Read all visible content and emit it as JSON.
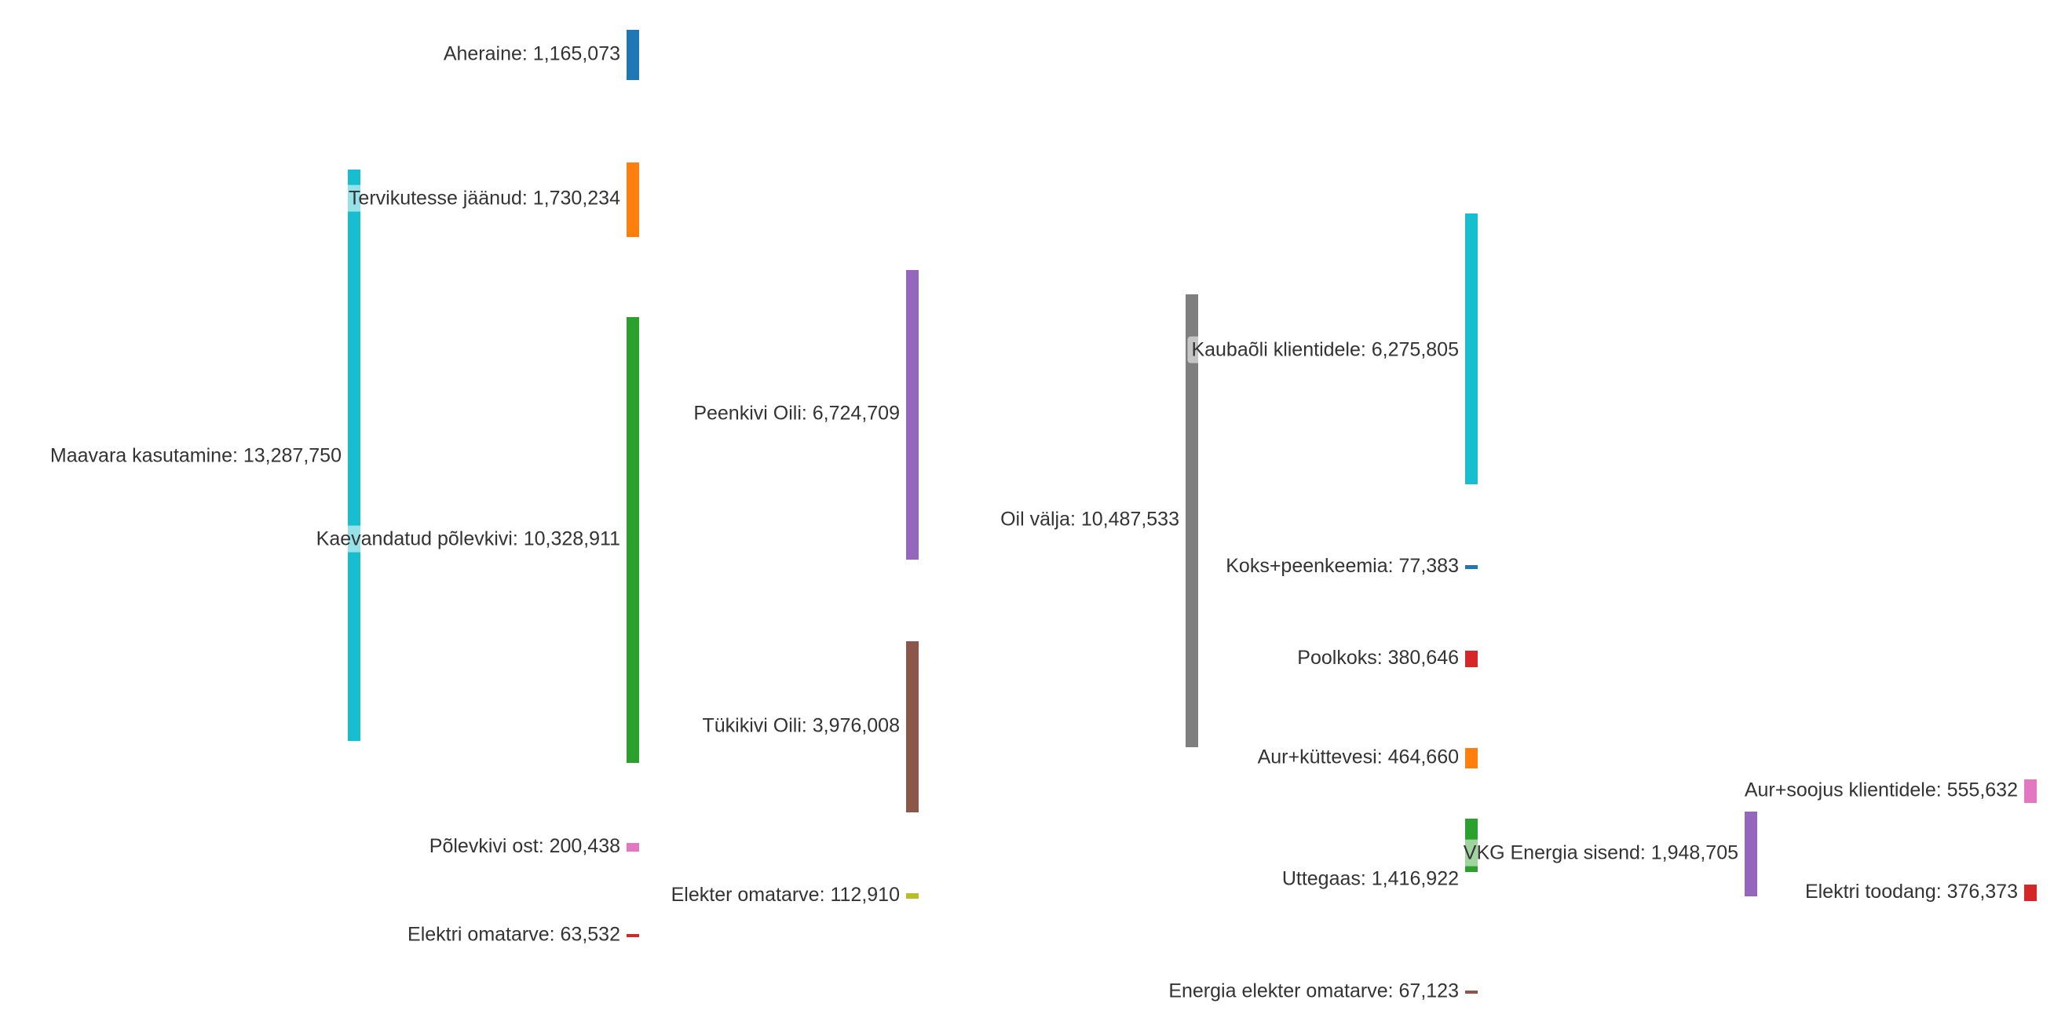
{
  "chart_data": {
    "type": "sankey",
    "nodes": [
      {
        "id": "maavara",
        "label": "Maavara kasutamine: 13,287,750",
        "name": "Maavara kasutamine",
        "value": 13287750,
        "color": "#17becf"
      },
      {
        "id": "aheraine",
        "label": "Aheraine: 1,165,073",
        "name": "Aheraine",
        "value": 1165073,
        "color": "#1f77b4"
      },
      {
        "id": "tervikutesse",
        "label": "Tervikutesse jäänud: 1,730,234",
        "name": "Tervikutesse jäänud",
        "value": 1730234,
        "color": "#ff7f0e"
      },
      {
        "id": "kaevandatud",
        "label": "Kaevandatud põlevkivi: 10,328,911",
        "name": "Kaevandatud põlevkivi",
        "value": 10328911,
        "color": "#2ca02c"
      },
      {
        "id": "polevkivi_ost",
        "label": "Põlevkivi ost: 200,438",
        "name": "Põlevkivi ost",
        "value": 200438,
        "color": "#e377c2"
      },
      {
        "id": "elektri_omatarve",
        "label": "Elektri omatarve: 63,532",
        "name": "Elektri omatarve",
        "value": 63532,
        "color": "#d62728"
      },
      {
        "id": "peenkivi",
        "label": "Peenkivi Oili: 6,724,709",
        "name": "Peenkivi Oili",
        "value": 6724709,
        "color": "#9467bd"
      },
      {
        "id": "tukikivi",
        "label": "Tükikivi Oili: 3,976,008",
        "name": "Tükikivi Oili",
        "value": 3976008,
        "color": "#8c564b"
      },
      {
        "id": "elekter_omatarve",
        "label": "Elekter omatarve: 112,910",
        "name": "Elekter omatarve",
        "value": 112910,
        "color": "#bcbd22"
      },
      {
        "id": "oil_valja",
        "label": "Oil välja: 10,487,533",
        "name": "Oil välja",
        "value": 10487533,
        "color": "#7f7f7f"
      },
      {
        "id": "kaubaoli",
        "label": "Kaubaõli klientidele: 6,275,805",
        "name": "Kaubaõli klientidele",
        "value": 6275805,
        "color": "#17becf"
      },
      {
        "id": "koks",
        "label": "Koks+peenkeemia: 77,383",
        "name": "Koks+peenkeemia",
        "value": 77383,
        "color": "#1f77b4"
      },
      {
        "id": "poolkoks",
        "label": "Poolkoks: 380,646",
        "name": "Poolkoks",
        "value": 380646,
        "color": "#d62728"
      },
      {
        "id": "aur_kuttevesi",
        "label": "Aur+küttevesi: 464,660",
        "name": "Aur+küttevesi",
        "value": 464660,
        "color": "#ff7f0e"
      },
      {
        "id": "uttegaas",
        "label": "Uttegaas: 1,416,922",
        "name": "Uttegaas",
        "value": 1416922,
        "color": "#2ca02c"
      },
      {
        "id": "energia_elekter_omatarve",
        "label": "Energia elekter omatarve: 67,123",
        "name": "Energia elekter omatarve",
        "value": 67123,
        "color": "#8c564b"
      },
      {
        "id": "vkg_energia",
        "label": "VKG Energia sisend: 1,948,705",
        "name": "VKG Energia sisend",
        "value": 1948705,
        "color": "#9467bd"
      },
      {
        "id": "aur_soojus",
        "label": "Aur+soojus klientidele: 555,632",
        "name": "Aur+soojus klientidele",
        "value": 555632,
        "color": "#e377c2"
      },
      {
        "id": "elektri_toodang",
        "label": "Elektri toodang: 376,373",
        "name": "Elektri toodang",
        "value": 376373,
        "color": "#d62728"
      }
    ],
    "links": [
      {
        "source": "maavara",
        "target": "aheraine",
        "value": 1165073
      },
      {
        "source": "maavara",
        "target": "tervikutesse",
        "value": 1730234
      },
      {
        "source": "maavara",
        "target": "kaevandatud",
        "value": 10328911
      },
      {
        "source": "maavara",
        "target": "elektri_omatarve",
        "value": 63532
      },
      {
        "source": "kaevandatud",
        "target": "peenkivi",
        "value": 6724709
      },
      {
        "source": "kaevandatud",
        "target": "tukikivi",
        "value": 3976008
      },
      {
        "source": "polevkivi_ost",
        "target": "peenkivi",
        "value": 200438
      },
      {
        "source": "peenkivi",
        "target": "oil_valja",
        "value": 6724709
      },
      {
        "source": "tukikivi",
        "target": "oil_valja",
        "value": 3976008
      },
      {
        "source": "elekter_omatarve",
        "target": "oil_valja",
        "value": 112910
      },
      {
        "source": "oil_valja",
        "target": "kaubaoli",
        "value": 6275805
      },
      {
        "source": "oil_valja",
        "target": "koks",
        "value": 77383
      },
      {
        "source": "oil_valja",
        "target": "poolkoks",
        "value": 380646
      },
      {
        "source": "oil_valja",
        "target": "aur_kuttevesi",
        "value": 464660
      },
      {
        "source": "oil_valja",
        "target": "uttegaas",
        "value": 1416922
      },
      {
        "source": "aur_kuttevesi",
        "target": "vkg_energia",
        "value": 464660
      },
      {
        "source": "uttegaas",
        "target": "vkg_energia",
        "value": 1416922
      },
      {
        "source": "energia_elekter_omatarve",
        "target": "vkg_energia",
        "value": 67123
      },
      {
        "source": "vkg_energia",
        "target": "aur_soojus",
        "value": 555632
      },
      {
        "source": "vkg_energia",
        "target": "elektri_toodang",
        "value": 376373
      }
    ]
  }
}
